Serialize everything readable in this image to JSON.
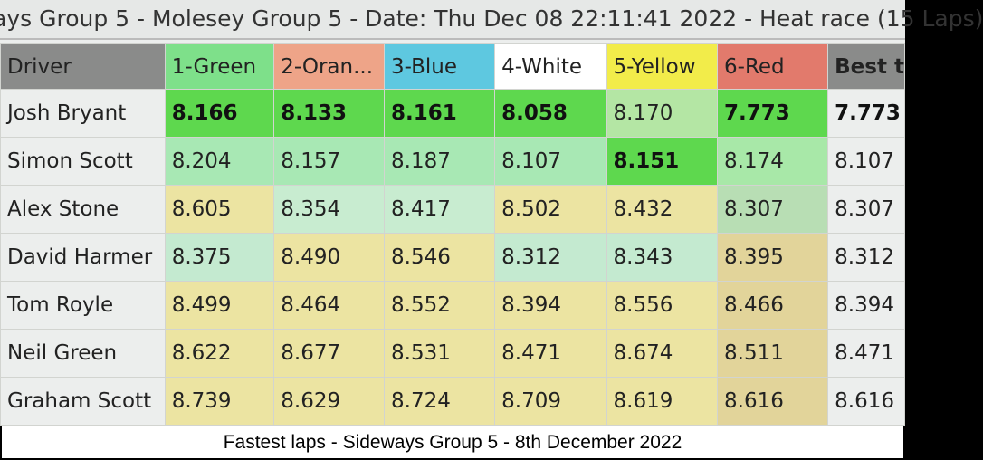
{
  "title": "ays Group 5 - Molesey Group 5 - Date: Thu Dec 08 22:11:41 2022 - Heat race (15 Laps)",
  "headers": [
    {
      "label": "Driver",
      "color": "#8a8b8a"
    },
    {
      "label": "1-Green",
      "color": "#7ee08a"
    },
    {
      "label": "2-Oran...",
      "color": "#eea488"
    },
    {
      "label": "3-Blue",
      "color": "#5ec8e0"
    },
    {
      "label": "4-White",
      "color": "#ffffff"
    },
    {
      "label": "5-Yellow",
      "color": "#f2ec4a"
    },
    {
      "label": "6-Red",
      "color": "#e27a6c"
    },
    {
      "label": "Best t",
      "color": "#8a8b8a"
    }
  ],
  "rows": [
    {
      "driver": "Josh Bryant",
      "laps": [
        "8.166",
        "8.133",
        "8.161",
        "8.058",
        "8.170",
        "7.773"
      ],
      "bold": [
        1,
        1,
        1,
        1,
        0,
        1
      ],
      "colors": [
        "#5ed84e",
        "#5ed84e",
        "#5ed84e",
        "#5ed84e",
        "#b4e6a4",
        "#5ed84e"
      ],
      "best": "7.773"
    },
    {
      "driver": "Simon Scott",
      "laps": [
        "8.204",
        "8.157",
        "8.187",
        "8.107",
        "8.151",
        "8.174"
      ],
      "bold": [
        0,
        0,
        0,
        0,
        1,
        0
      ],
      "colors": [
        "#a8e8b4",
        "#a8e8b4",
        "#a8e8b4",
        "#a8e8b4",
        "#5ed84e",
        "#a8e8a8"
      ],
      "best": "8.107"
    },
    {
      "driver": "Alex Stone",
      "laps": [
        "8.605",
        "8.354",
        "8.417",
        "8.502",
        "8.432",
        "8.307"
      ],
      "bold": [
        0,
        0,
        0,
        0,
        0,
        0
      ],
      "colors": [
        "#ece4a2",
        "#c8ecd0",
        "#c8ecd0",
        "#ece4a2",
        "#ece4a2",
        "#b8deb4"
      ],
      "best": "8.307"
    },
    {
      "driver": "David Harmer",
      "laps": [
        "8.375",
        "8.490",
        "8.546",
        "8.312",
        "8.343",
        "8.395"
      ],
      "bold": [
        0,
        0,
        0,
        0,
        0,
        0
      ],
      "colors": [
        "#c4ead0",
        "#ece4a2",
        "#ece4a2",
        "#c4ead0",
        "#c4ead0",
        "#e2d49a"
      ],
      "best": "8.312"
    },
    {
      "driver": "Tom Royle",
      "laps": [
        "8.499",
        "8.464",
        "8.552",
        "8.394",
        "8.556",
        "8.466"
      ],
      "bold": [
        0,
        0,
        0,
        0,
        0,
        0
      ],
      "colors": [
        "#ece4a2",
        "#ece4a2",
        "#ece4a2",
        "#ece4a2",
        "#ece4a2",
        "#e2d49a"
      ],
      "best": "8.394"
    },
    {
      "driver": "Neil Green",
      "laps": [
        "8.622",
        "8.677",
        "8.531",
        "8.471",
        "8.674",
        "8.511"
      ],
      "bold": [
        0,
        0,
        0,
        0,
        0,
        0
      ],
      "colors": [
        "#ece4a2",
        "#ece4a2",
        "#ece4a2",
        "#ece4a2",
        "#ece4a2",
        "#e2d49a"
      ],
      "best": "8.471"
    },
    {
      "driver": "Graham Scott",
      "laps": [
        "8.739",
        "8.629",
        "8.724",
        "8.709",
        "8.619",
        "8.616"
      ],
      "bold": [
        0,
        0,
        0,
        0,
        0,
        0
      ],
      "colors": [
        "#ece4a2",
        "#ece4a2",
        "#ece4a2",
        "#ece4a2",
        "#ece4a2",
        "#e2d49a"
      ],
      "best": "8.616"
    }
  ],
  "caption": "Fastest laps - Sideways Group 5 - 8th December 2022"
}
